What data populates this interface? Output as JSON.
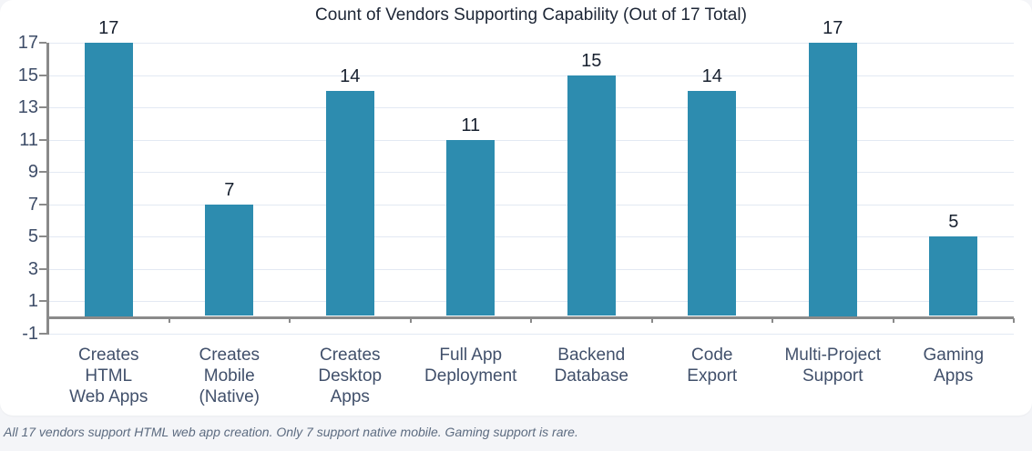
{
  "chart_data": {
    "type": "bar",
    "title": "Count of Vendors Supporting Capability (Out of 17 Total)",
    "categories": [
      "Creates\nHTML\nWeb Apps",
      "Creates\nMobile\n(Native)",
      "Creates\nDesktop\nApps",
      "Full App\nDeployment",
      "Backend\nDatabase",
      "Code\nExport",
      "Multi-Project\nSupport",
      "Gaming\nApps"
    ],
    "values": [
      17,
      7,
      14,
      11,
      15,
      14,
      17,
      5
    ],
    "value_labels": [
      "17",
      "7",
      "14",
      "11",
      "15",
      "14",
      "17",
      "5"
    ],
    "y_ticks": [
      -1,
      1,
      3,
      5,
      7,
      9,
      11,
      13,
      15,
      17
    ],
    "ylim": [
      -1,
      17
    ],
    "xlabel": "",
    "ylabel": "",
    "grid": true,
    "legend": "none",
    "bar_color": "#2d8caf",
    "axis_color": "#8a8a8a",
    "gridline_color": "#e3e9f3"
  },
  "footer": {
    "note": "All 17 vendors support HTML web app creation. Only 7 support native mobile. Gaming support is rare."
  }
}
